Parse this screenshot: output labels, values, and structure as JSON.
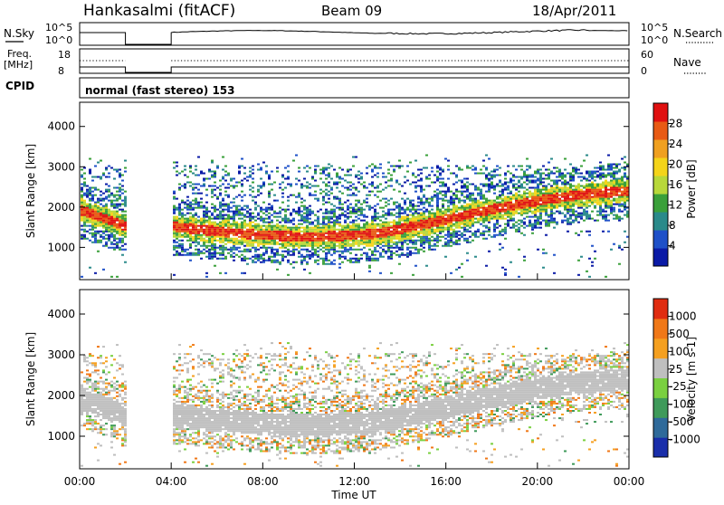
{
  "header": {
    "station": "Hankasalmi (fitACF)",
    "beam": "Beam 09",
    "date": "18/Apr/2011"
  },
  "strip_panels": {
    "nsky": {
      "left_label": "N.Sky",
      "left_ticks": [
        "10^5",
        "10^0"
      ],
      "right_ticks": [
        "10^5",
        "10^0"
      ],
      "right_label": "N.Search"
    },
    "freq": {
      "left_label_1": "Freq.",
      "left_label_2": "[MHz]",
      "left_ticks": [
        "18",
        "8"
      ],
      "right_ticks": [
        "60",
        "0"
      ],
      "right_label": "Nave"
    },
    "cpid": {
      "label": "CPID",
      "text": "normal (fast stereo) 153"
    }
  },
  "chart_data": [
    {
      "type": "heatmap",
      "panel": "power",
      "ylabel": "Slant Range [km]",
      "yticks": [
        "1000",
        "2000",
        "3000",
        "4000"
      ],
      "ylim": [
        200,
        4600
      ],
      "xlim_hours": [
        0,
        24
      ],
      "data_gap_hours": [
        2.0,
        4.0
      ],
      "colorbar_label": "Power [dB]",
      "colorbar_ticks": [
        "28",
        "24",
        "20",
        "16",
        "12",
        "8",
        "4"
      ],
      "colors": [
        "#0a1aa6",
        "#1e50c8",
        "#2a8a8a",
        "#3aa03a",
        "#b8d83a",
        "#f4d41a",
        "#f0a020",
        "#e85a14",
        "#e01010"
      ]
    },
    {
      "type": "heatmap",
      "panel": "velocity",
      "ylabel": "Slant Range [km]",
      "yticks": [
        "1000",
        "2000",
        "3000",
        "4000"
      ],
      "ylim": [
        200,
        4600
      ],
      "xlim_hours": [
        0,
        24
      ],
      "data_gap_hours": [
        2.0,
        4.0
      ],
      "colorbar_label": "Velocity [m s-1]",
      "colorbar_ticks": [
        "1000",
        "500",
        "100",
        "25",
        "-25",
        "-100",
        "-500",
        "-1000"
      ],
      "colors": [
        "#1a2eaa",
        "#2f6a9a",
        "#3f9a5a",
        "#7ad040",
        "#bfbfbf",
        "#f5a020",
        "#f07818",
        "#e02c10"
      ]
    }
  ],
  "xaxis": {
    "ticks": [
      "00:00",
      "04:00",
      "08:00",
      "12:00",
      "16:00",
      "20:00",
      "00:00"
    ],
    "label": "Time UT"
  }
}
